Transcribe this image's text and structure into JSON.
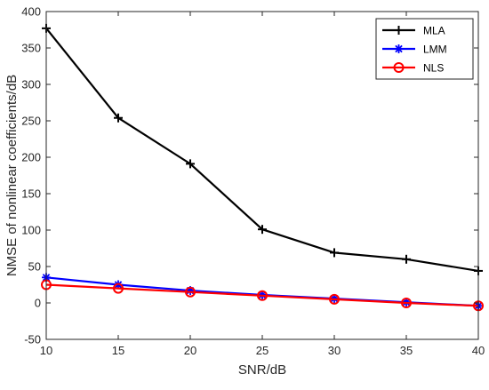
{
  "chart_data": {
    "type": "line",
    "xlabel": "SNR/dB",
    "ylabel": "NMSE of nonlinear coefficients/dB",
    "xlim": [
      10,
      40
    ],
    "ylim": [
      -50,
      400
    ],
    "x_ticks": [
      "10",
      "15",
      "20",
      "25",
      "30",
      "35",
      "40"
    ],
    "y_ticks": [
      "-50",
      "0",
      "50",
      "100",
      "150",
      "200",
      "250",
      "300",
      "350",
      "400"
    ],
    "grid": false,
    "legend_position": "top-right",
    "x": [
      10,
      15,
      20,
      25,
      30,
      35,
      40
    ],
    "series": [
      {
        "name": "MLA",
        "color": "#000000",
        "marker": "plus",
        "values": [
          377,
          254,
          191,
          101,
          69,
          60,
          44
        ]
      },
      {
        "name": "LMM",
        "color": "#0000ff",
        "marker": "asterisk",
        "values": [
          35,
          25,
          17,
          11,
          6,
          1,
          -4
        ]
      },
      {
        "name": "NLS",
        "color": "#ff0000",
        "marker": "circle",
        "values": [
          25,
          20,
          15,
          10,
          5,
          0,
          -4
        ]
      }
    ]
  }
}
